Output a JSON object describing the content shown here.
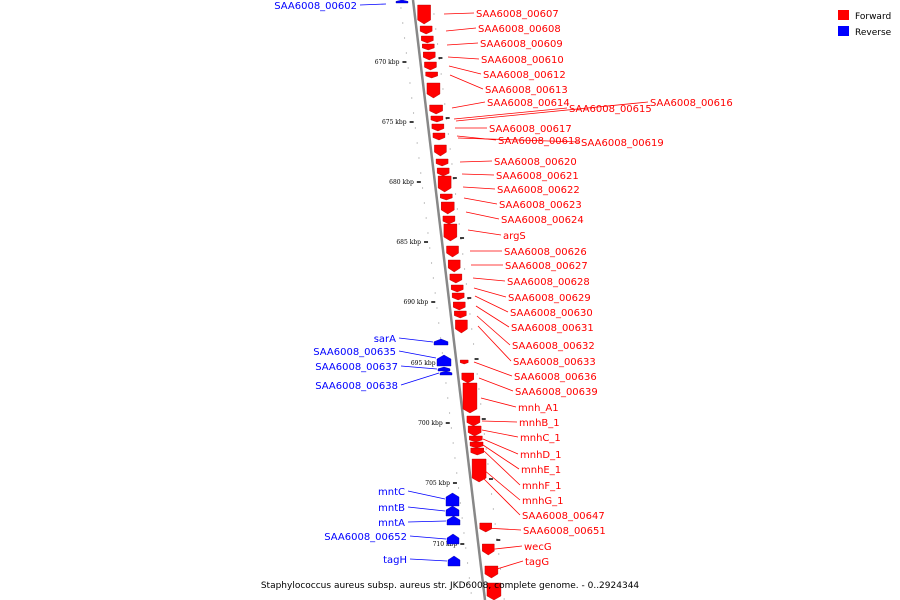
{
  "caption": "Staphylococcus aureus subsp. aureus str. JKD6008, complete genome. - 0..2924344",
  "legend": [
    {
      "label": "Forward",
      "color": "#ff0000"
    },
    {
      "label": "Reverse",
      "color": "#0000ff"
    }
  ],
  "colors": {
    "forward": "#ff0000",
    "reverse": "#0000ff",
    "backbone": "#888888"
  },
  "tick_labels": [
    "670 kbp",
    "675 kbp",
    "680 kbp",
    "685 kbp",
    "690 kbp",
    "695 kbp",
    "700 kbp",
    "705 kbp",
    "710 kbp"
  ],
  "genes": [
    {
      "name": "SAA6008_00602",
      "strand": "reverse"
    },
    {
      "name": "SAA6008_00607",
      "strand": "forward"
    },
    {
      "name": "SAA6008_00608",
      "strand": "forward"
    },
    {
      "name": "SAA6008_00609",
      "strand": "forward"
    },
    {
      "name": "SAA6008_00610",
      "strand": "forward"
    },
    {
      "name": "SAA6008_00612",
      "strand": "forward"
    },
    {
      "name": "SAA6008_00613",
      "strand": "forward"
    },
    {
      "name": "SAA6008_00614",
      "strand": "forward"
    },
    {
      "name": "SAA6008_00615",
      "strand": "forward"
    },
    {
      "name": "SAA6008_00616",
      "strand": "forward"
    },
    {
      "name": "SAA6008_00617",
      "strand": "forward"
    },
    {
      "name": "SAA6008_00618",
      "strand": "forward"
    },
    {
      "name": "SAA6008_00619",
      "strand": "forward"
    },
    {
      "name": "SAA6008_00620",
      "strand": "forward"
    },
    {
      "name": "SAA6008_00621",
      "strand": "forward"
    },
    {
      "name": "SAA6008_00622",
      "strand": "forward"
    },
    {
      "name": "SAA6008_00623",
      "strand": "forward"
    },
    {
      "name": "SAA6008_00624",
      "strand": "forward"
    },
    {
      "name": "argS",
      "strand": "forward"
    },
    {
      "name": "SAA6008_00626",
      "strand": "forward"
    },
    {
      "name": "SAA6008_00627",
      "strand": "forward"
    },
    {
      "name": "SAA6008_00628",
      "strand": "forward"
    },
    {
      "name": "SAA6008_00629",
      "strand": "forward"
    },
    {
      "name": "SAA6008_00630",
      "strand": "forward"
    },
    {
      "name": "SAA6008_00631",
      "strand": "forward"
    },
    {
      "name": "SAA6008_00632",
      "strand": "forward"
    },
    {
      "name": "SAA6008_00633",
      "strand": "forward"
    },
    {
      "name": "SAA6008_00636",
      "strand": "forward"
    },
    {
      "name": "SAA6008_00639",
      "strand": "forward"
    },
    {
      "name": "mnh_A1",
      "strand": "forward"
    },
    {
      "name": "mnhB_1",
      "strand": "forward"
    },
    {
      "name": "mnhC_1",
      "strand": "forward"
    },
    {
      "name": "mnhD_1",
      "strand": "forward"
    },
    {
      "name": "mnhE_1",
      "strand": "forward"
    },
    {
      "name": "mnhF_1",
      "strand": "forward"
    },
    {
      "name": "mnhG_1",
      "strand": "forward"
    },
    {
      "name": "SAA6008_00647",
      "strand": "forward"
    },
    {
      "name": "SAA6008_00651",
      "strand": "forward"
    },
    {
      "name": "wecG",
      "strand": "forward"
    },
    {
      "name": "tagG",
      "strand": "forward"
    },
    {
      "name": "sarA",
      "strand": "reverse"
    },
    {
      "name": "SAA6008_00635",
      "strand": "reverse"
    },
    {
      "name": "SAA6008_00637",
      "strand": "reverse"
    },
    {
      "name": "SAA6008_00638",
      "strand": "reverse"
    },
    {
      "name": "mntC",
      "strand": "reverse"
    },
    {
      "name": "mntB",
      "strand": "reverse"
    },
    {
      "name": "mntA",
      "strand": "reverse"
    },
    {
      "name": "SAA6008_00652",
      "strand": "reverse"
    },
    {
      "name": "tagH",
      "strand": "reverse"
    }
  ]
}
